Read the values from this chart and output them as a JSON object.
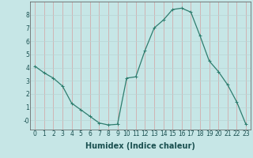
{
  "x": [
    0,
    1,
    2,
    3,
    4,
    5,
    6,
    7,
    8,
    9,
    10,
    11,
    12,
    13,
    14,
    15,
    16,
    17,
    18,
    19,
    20,
    21,
    22,
    23
  ],
  "y": [
    4.1,
    3.6,
    3.2,
    2.6,
    1.3,
    0.8,
    0.3,
    -0.2,
    -0.35,
    -0.3,
    3.2,
    3.3,
    5.3,
    7.0,
    7.6,
    8.4,
    8.5,
    8.2,
    6.4,
    4.5,
    3.7,
    2.7,
    1.4,
    -0.3
  ],
  "line_color": "#2e7d6e",
  "marker": "+",
  "marker_size": 3,
  "bg_color": "#c6e6e6",
  "grid_v_color": "#d4a0a0",
  "grid_h_color": "#b8d4d4",
  "xlabel": "Humidex (Indice chaleur)",
  "xlabel_fontsize": 7,
  "yticks": [
    0,
    1,
    2,
    3,
    4,
    5,
    6,
    7,
    8
  ],
  "ytick_labels": [
    "-0",
    "1",
    "2",
    "3",
    "4",
    "5",
    "6",
    "7",
    "8"
  ],
  "ylim": [
    -0.7,
    9.0
  ],
  "xlim": [
    -0.5,
    23.5
  ],
  "tick_fontsize": 5.5,
  "linewidth": 0.9,
  "markeredgewidth": 0.7
}
